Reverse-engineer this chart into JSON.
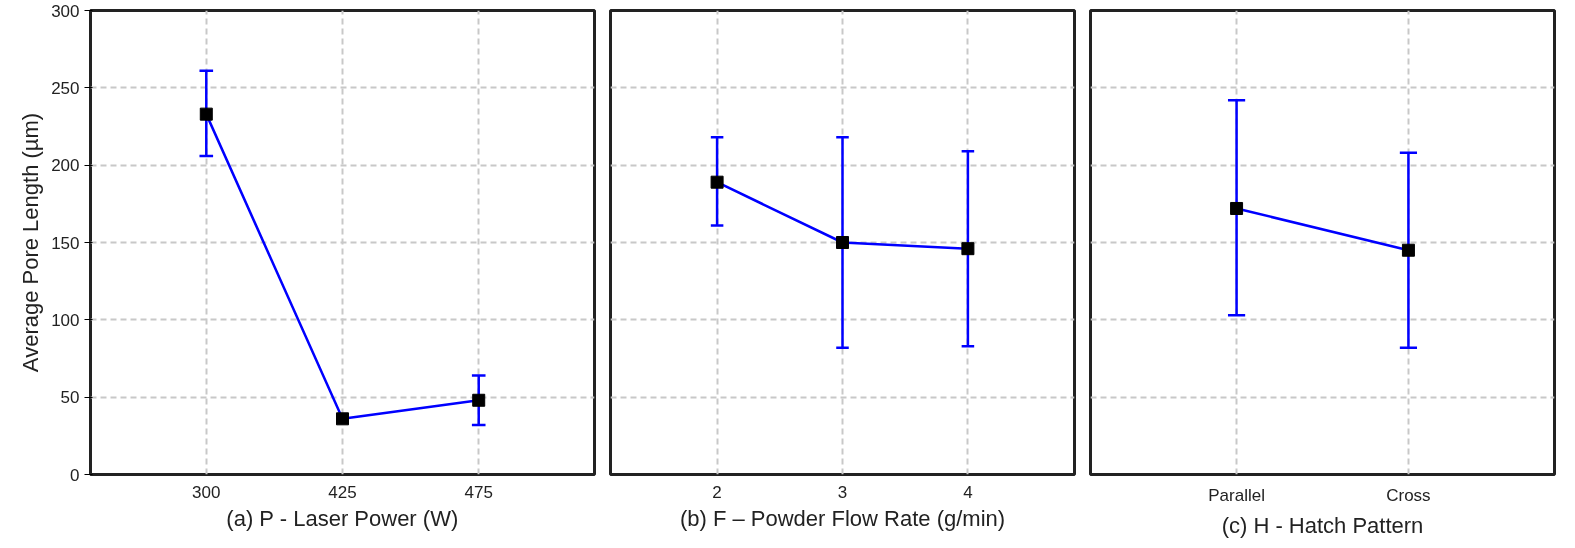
{
  "chart_data": [
    {
      "type": "line",
      "xlabel": "(a) P - Laser Power (W)",
      "ylabel": "Average Pore Length (µm)",
      "categories": [
        "300",
        "425",
        "475"
      ],
      "ylim": [
        0,
        300
      ],
      "yticks": [
        0,
        50,
        100,
        150,
        200,
        250,
        300
      ],
      "grid": true,
      "marker": "square",
      "line_style": "solid",
      "series": [
        {
          "color": "#0000ff",
          "values": [
            233,
            36,
            48
          ],
          "errors": [
            [
              206,
              261
            ],
            null,
            [
              32,
              64
            ]
          ]
        }
      ]
    },
    {
      "type": "line",
      "xlabel": "(b) F – Powder Flow Rate (g/min)",
      "categories": [
        "2",
        "3",
        "4"
      ],
      "ylim": [
        0,
        300
      ],
      "yticks": [
        0,
        50,
        100,
        150,
        200,
        250,
        300
      ],
      "tick_labels": "x",
      "grid": true,
      "marker": "square",
      "line_style": "solid",
      "series": [
        {
          "color": "#0000ff",
          "values": [
            189,
            150,
            146
          ],
          "errors": [
            [
              161,
              218
            ],
            [
              82,
              218
            ],
            [
              83,
              209
            ]
          ]
        }
      ]
    },
    {
      "type": "line",
      "xlabel": "(c) H - Hatch Pattern",
      "categories": [
        "Parallel",
        "Cross"
      ],
      "ylim": [
        0,
        300
      ],
      "yticks": [
        0,
        50,
        100,
        150,
        200,
        250,
        300
      ],
      "tick_labels": "x",
      "grid": true,
      "marker": "square",
      "line_style": "solid",
      "series": [
        {
          "color": "#0000ff",
          "values": [
            172,
            145
          ],
          "errors": [
            [
              103,
              242
            ],
            [
              82,
              208
            ]
          ]
        }
      ]
    }
  ]
}
